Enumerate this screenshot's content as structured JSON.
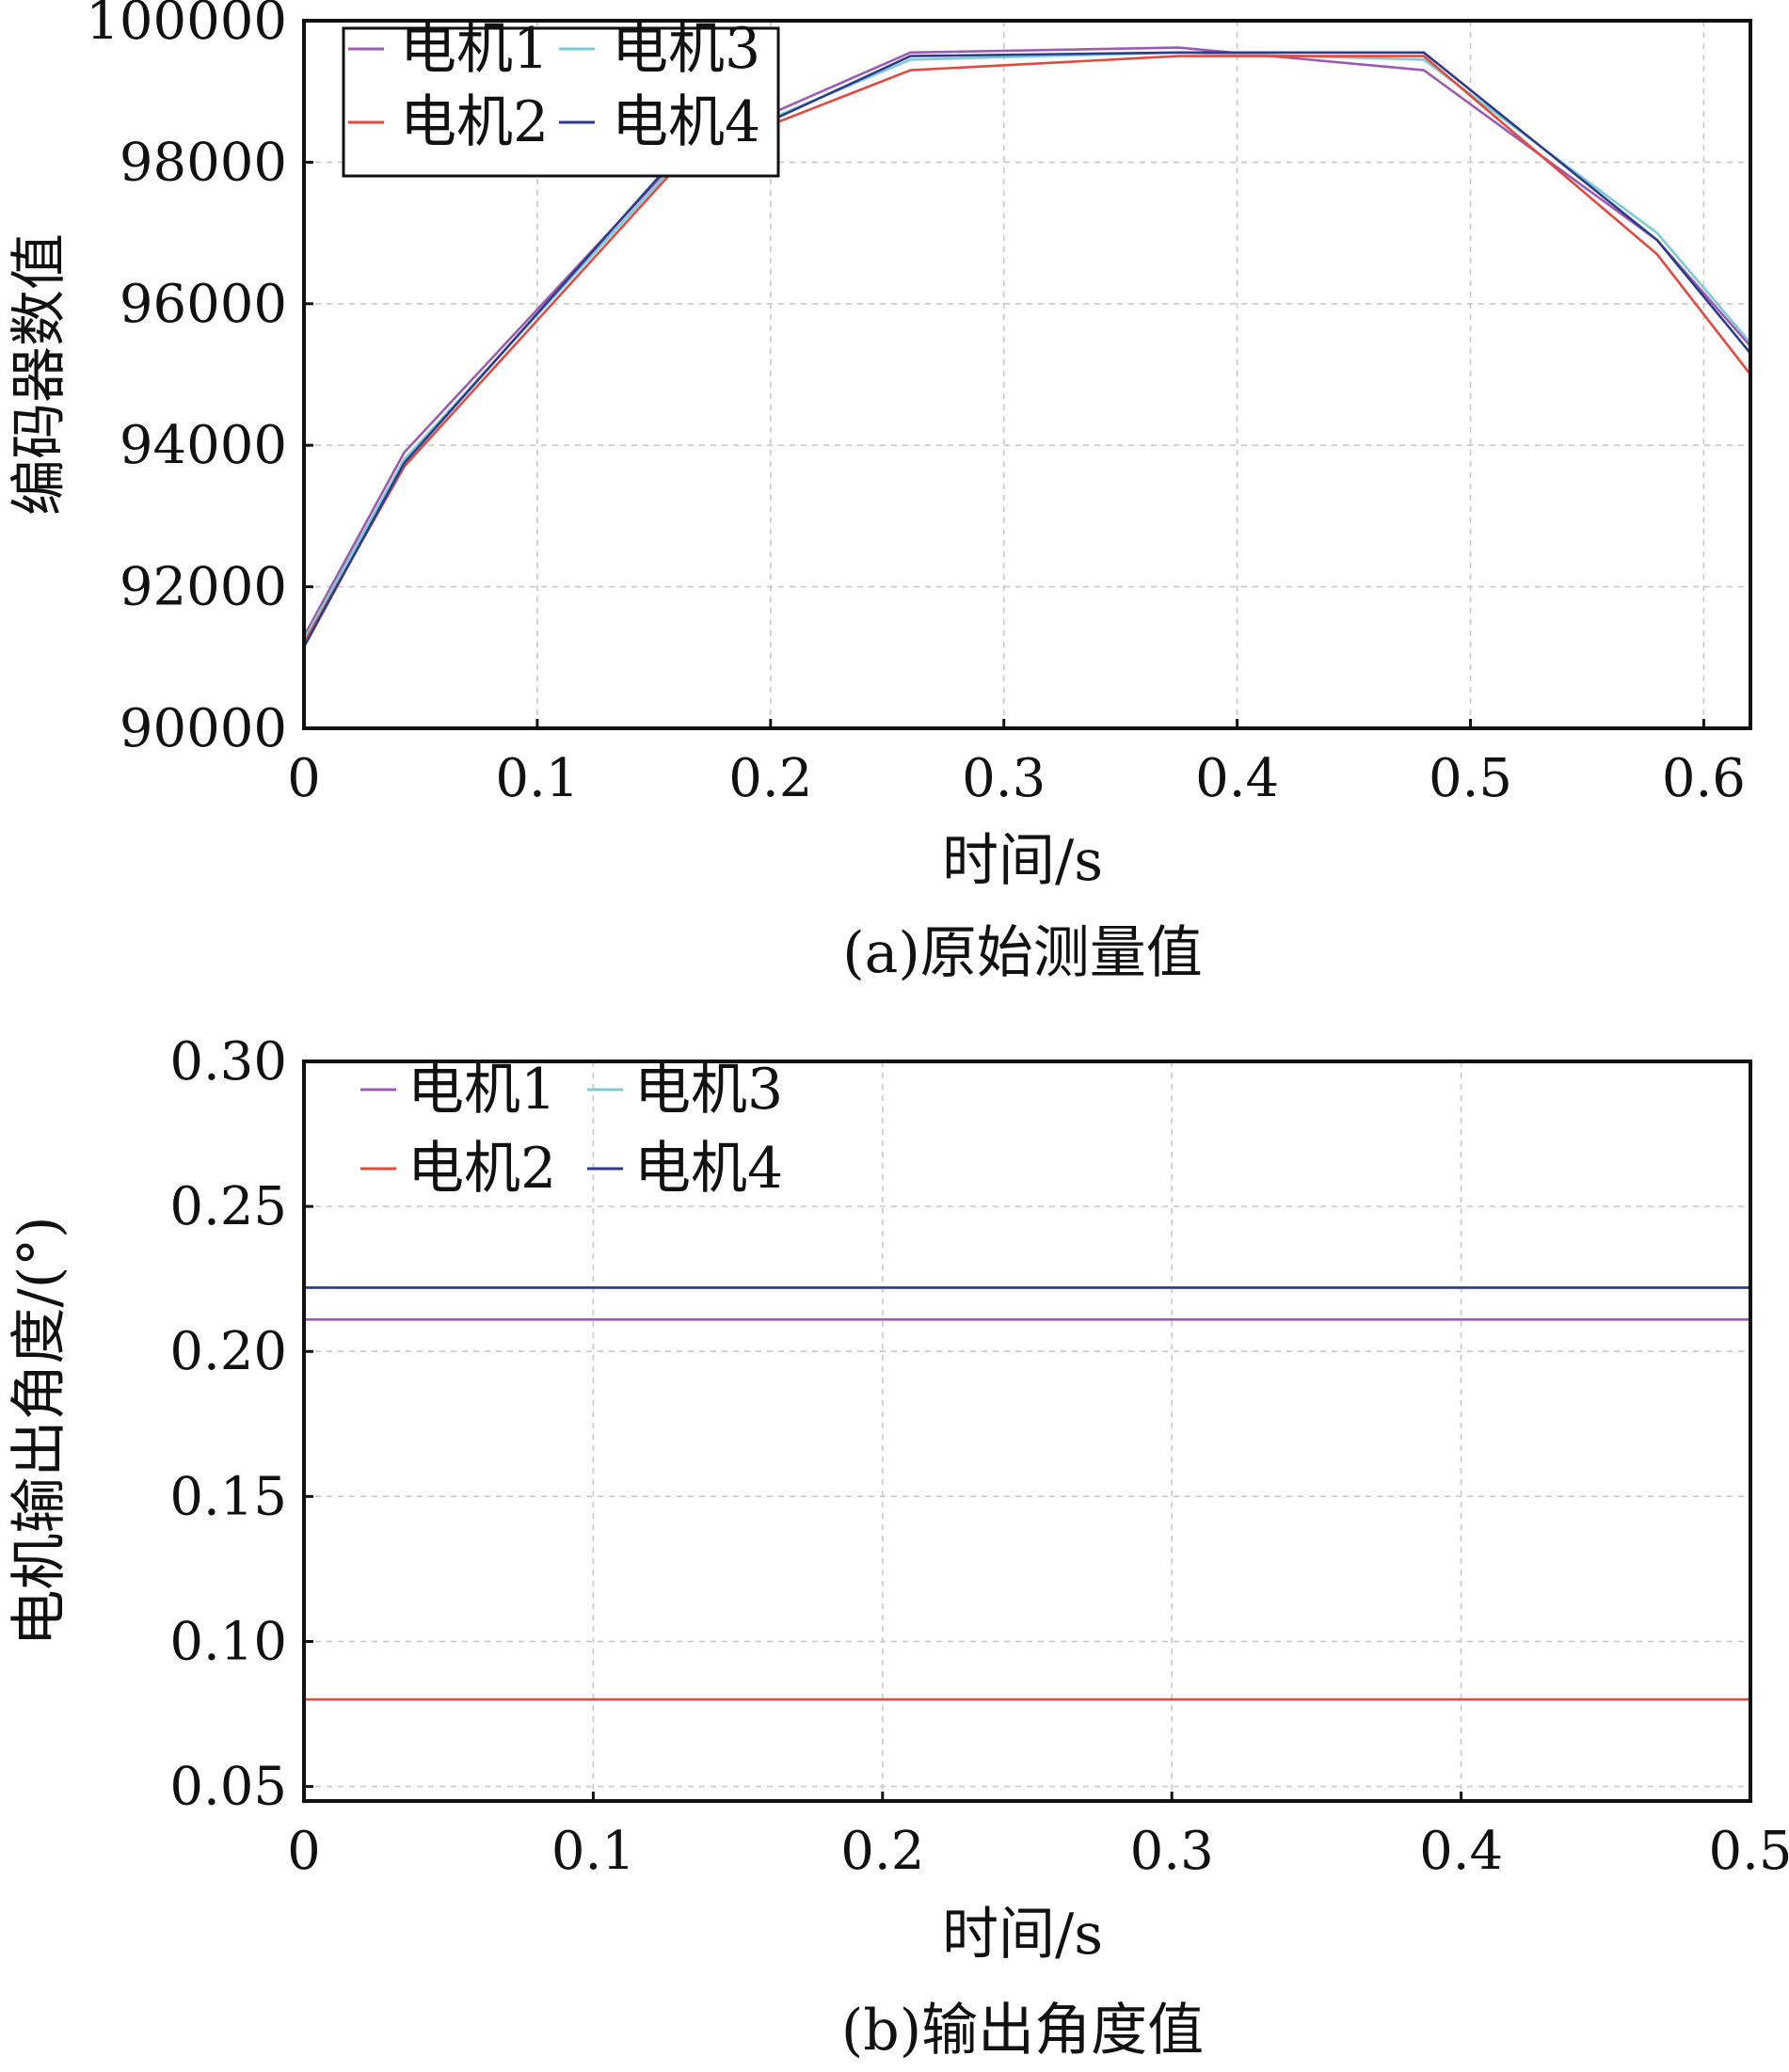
{
  "chart_data": [
    {
      "type": "line",
      "panel": "a",
      "caption": "(a)原始测量值",
      "xlabel": "时间/s",
      "ylabel": "编码器数值",
      "xlim": [
        0,
        0.62
      ],
      "ylim": [
        90000,
        100000
      ],
      "xticks": [
        0,
        0.1,
        0.2,
        0.3,
        0.4,
        0.5,
        0.6
      ],
      "xtick_labels": [
        "0",
        "0.1",
        "0.2",
        "0.3",
        "0.4",
        "0.5",
        "0.6"
      ],
      "yticks": [
        90000,
        92000,
        94000,
        96000,
        98000,
        100000
      ],
      "ytick_labels": [
        "90000",
        "92000",
        "94000",
        "96000",
        "98000",
        "100000"
      ],
      "grid": true,
      "legend": {
        "placement": "top-left",
        "columns": 2,
        "framed": true
      },
      "series": [
        {
          "name": "电机1",
          "color": "#9a5bb0",
          "x": [
            0,
            0.043,
            0.163,
            0.26,
            0.375,
            0.48,
            0.58,
            0.62
          ],
          "y": [
            91300,
            93900,
            98150,
            99550,
            99620,
            99300,
            96900,
            95400
          ]
        },
        {
          "name": "电机3",
          "color": "#7ecbd1",
          "x": [
            0,
            0.043,
            0.163,
            0.26,
            0.375,
            0.48,
            0.58,
            0.62
          ],
          "y": [
            91250,
            93800,
            98100,
            99450,
            99550,
            99450,
            97000,
            95450
          ]
        },
        {
          "name": "电机2",
          "color": "#e04a3f",
          "x": [
            0,
            0.043,
            0.163,
            0.26,
            0.375,
            0.48,
            0.58,
            0.62
          ],
          "y": [
            91200,
            93700,
            98050,
            99300,
            99500,
            99500,
            96700,
            95000
          ]
        },
        {
          "name": "电机4",
          "color": "#2c3c8c",
          "x": [
            0,
            0.043,
            0.155,
            0.26,
            0.375,
            0.48,
            0.58,
            0.62
          ],
          "y": [
            91150,
            93750,
            97900,
            99500,
            99550,
            99550,
            96900,
            95300
          ]
        }
      ]
    },
    {
      "type": "line",
      "panel": "b",
      "caption": "(b)输出角度值",
      "xlabel": "时间/s",
      "ylabel": "电机输出角度/(°)",
      "xlim": [
        0,
        0.5
      ],
      "ylim": [
        0.045,
        0.3
      ],
      "xticks": [
        0,
        0.1,
        0.2,
        0.3,
        0.4,
        0.5
      ],
      "xtick_labels": [
        "0",
        "0.1",
        "0.2",
        "0.3",
        "0.4",
        "0.5"
      ],
      "yticks": [
        0.05,
        0.1,
        0.15,
        0.2,
        0.25,
        0.3
      ],
      "ytick_labels": [
        "0.05",
        "0.10",
        "0.15",
        "0.20",
        "0.25",
        "0.30"
      ],
      "grid": true,
      "legend": {
        "placement": "top-left",
        "columns": 2,
        "framed": false
      },
      "series": [
        {
          "name": "电机1",
          "color": "#9a5bb0",
          "x": [
            0,
            0.5
          ],
          "y": [
            0.211,
            0.211
          ]
        },
        {
          "name": "电机3",
          "color": "#7ecbd1",
          "x": [
            0,
            0.5
          ],
          "y": [
            0.222,
            0.222
          ]
        },
        {
          "name": "电机2",
          "color": "#e04a3f",
          "x": [
            0,
            0.5
          ],
          "y": [
            0.08,
            0.08
          ]
        },
        {
          "name": "电机4",
          "color": "#2c3c8c",
          "x": [
            0,
            0.5
          ],
          "y": [
            0.222,
            0.222
          ]
        }
      ]
    }
  ]
}
